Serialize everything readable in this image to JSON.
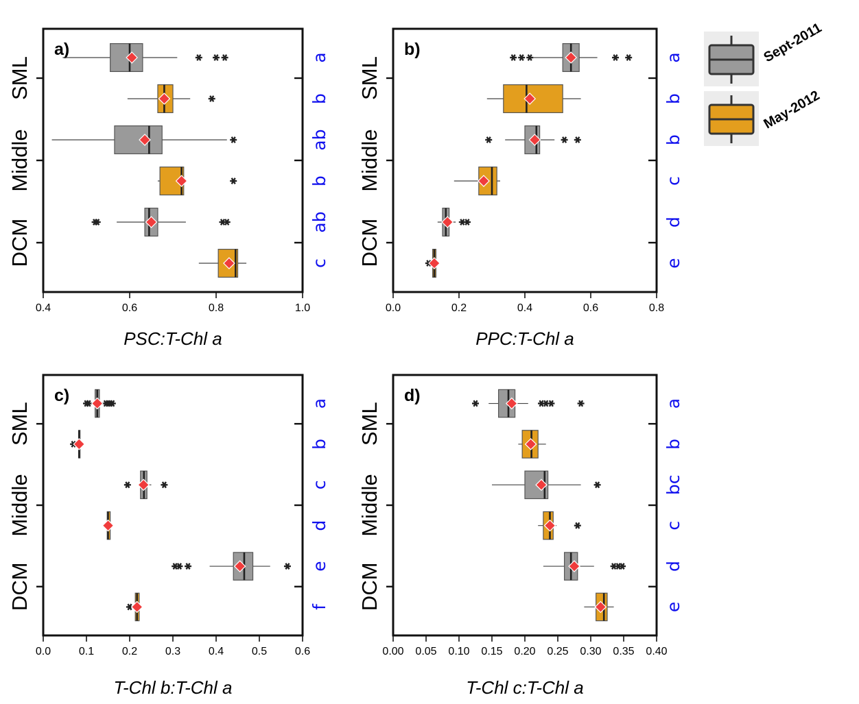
{
  "figure": {
    "colors": {
      "sept": "#9a9a9a",
      "may": "#e39e1e",
      "mean": "#f03c3c",
      "sig": "#1010ee",
      "box_edge": "#333333"
    },
    "legend": [
      {
        "label": "Sept-2011",
        "color": "#9a9a9a"
      },
      {
        "label": "May-2012",
        "color": "#e39e1e"
      }
    ],
    "y_group_labels": [
      "SML",
      "Middle",
      "DCM"
    ]
  },
  "chart_data": [
    {
      "type": "box",
      "panel_label": "a)",
      "xlabel": "PSC:T-Chl a",
      "xlim": [
        0.4,
        1.0
      ],
      "xticks": [
        "0.4",
        "0.6",
        "0.8",
        "1.0"
      ],
      "series": [
        {
          "group": "SML",
          "period": "Sept-2011",
          "whisker_low": 0.445,
          "q1": 0.555,
          "median": 0.6,
          "q3": 0.63,
          "whisker_high": 0.71,
          "mean": 0.605,
          "outliers": [
            0.76,
            0.8,
            0.82
          ],
          "letter": "a"
        },
        {
          "group": "SML",
          "period": "May-2012",
          "whisker_low": 0.595,
          "q1": 0.665,
          "median": 0.68,
          "q3": 0.7,
          "whisker_high": 0.74,
          "mean": 0.68,
          "outliers": [
            0.79
          ],
          "letter": "b"
        },
        {
          "group": "Middle",
          "period": "Sept-2011",
          "whisker_low": 0.42,
          "q1": 0.565,
          "median": 0.645,
          "q3": 0.675,
          "whisker_high": 0.825,
          "mean": 0.635,
          "outliers": [
            0.84
          ],
          "letter": "ab"
        },
        {
          "group": "Middle",
          "period": "May-2012",
          "whisker_low": 0.665,
          "q1": 0.67,
          "median": 0.72,
          "q3": 0.725,
          "whisker_high": 0.73,
          "mean": 0.72,
          "outliers": [
            0.84
          ],
          "letter": "b"
        },
        {
          "group": "DCM",
          "period": "Sept-2011",
          "whisker_low": 0.57,
          "q1": 0.635,
          "median": 0.645,
          "q3": 0.665,
          "whisker_high": 0.73,
          "mean": 0.65,
          "outliers": [
            0.52,
            0.525,
            0.815,
            0.825
          ],
          "letter": "ab"
        },
        {
          "group": "DCM",
          "period": "May-2012",
          "whisker_low": 0.76,
          "q1": 0.805,
          "median": 0.845,
          "q3": 0.85,
          "whisker_high": 0.87,
          "mean": 0.83,
          "outliers": [],
          "letter": "c"
        }
      ]
    },
    {
      "type": "box",
      "panel_label": "b)",
      "xlabel": "PPC:T-Chl a",
      "xlim": [
        0.0,
        0.8
      ],
      "xticks": [
        "0.0",
        "0.2",
        "0.4",
        "0.6",
        "0.8"
      ],
      "series": [
        {
          "group": "SML",
          "period": "Sept-2011",
          "whisker_low": 0.42,
          "q1": 0.515,
          "median": 0.54,
          "q3": 0.565,
          "whisker_high": 0.62,
          "mean": 0.54,
          "outliers": [
            0.365,
            0.39,
            0.415,
            0.675,
            0.715
          ],
          "letter": "a"
        },
        {
          "group": "SML",
          "period": "May-2012",
          "whisker_low": 0.285,
          "q1": 0.335,
          "median": 0.405,
          "q3": 0.515,
          "whisker_high": 0.57,
          "mean": 0.415,
          "outliers": [],
          "letter": "b"
        },
        {
          "group": "Middle",
          "period": "Sept-2011",
          "whisker_low": 0.34,
          "q1": 0.4,
          "median": 0.435,
          "q3": 0.445,
          "whisker_high": 0.49,
          "mean": 0.43,
          "outliers": [
            0.29,
            0.52,
            0.56
          ],
          "letter": "b"
        },
        {
          "group": "Middle",
          "period": "May-2012",
          "whisker_low": 0.185,
          "q1": 0.26,
          "median": 0.3,
          "q3": 0.315,
          "whisker_high": 0.325,
          "mean": 0.275,
          "outliers": [],
          "letter": "c"
        },
        {
          "group": "DCM",
          "period": "Sept-2011",
          "whisker_low": 0.135,
          "q1": 0.15,
          "median": 0.16,
          "q3": 0.17,
          "whisker_high": 0.19,
          "mean": 0.165,
          "outliers": [
            0.21,
            0.225
          ],
          "letter": "d"
        },
        {
          "group": "DCM",
          "period": "May-2012",
          "whisker_low": 0.115,
          "q1": 0.12,
          "median": 0.125,
          "q3": 0.13,
          "whisker_high": 0.132,
          "mean": 0.125,
          "outliers": [
            0.108
          ],
          "letter": "e"
        }
      ]
    },
    {
      "type": "box",
      "panel_label": "c)",
      "xlabel": "T-Chl b:T-Chl a",
      "xlim": [
        0.0,
        0.6
      ],
      "xticks": [
        "0.0",
        "0.1",
        "0.2",
        "0.3",
        "0.4",
        "0.5",
        "0.6"
      ],
      "series": [
        {
          "group": "SML",
          "period": "Sept-2011",
          "whisker_low": 0.115,
          "q1": 0.12,
          "median": 0.125,
          "q3": 0.13,
          "whisker_high": 0.14,
          "mean": 0.125,
          "outliers": [
            0.1,
            0.105,
            0.145,
            0.15,
            0.155,
            0.16
          ],
          "letter": "a"
        },
        {
          "group": "SML",
          "period": "May-2012",
          "whisker_low": 0.08,
          "q1": 0.082,
          "median": 0.083,
          "q3": 0.085,
          "whisker_high": 0.087,
          "mean": 0.083,
          "outliers": [
            0.07
          ],
          "letter": "b"
        },
        {
          "group": "Middle",
          "period": "Sept-2011",
          "whisker_low": 0.22,
          "q1": 0.225,
          "median": 0.233,
          "q3": 0.24,
          "whisker_high": 0.25,
          "mean": 0.232,
          "outliers": [
            0.195,
            0.28
          ],
          "letter": "c"
        },
        {
          "group": "Middle",
          "period": "May-2012",
          "whisker_low": 0.145,
          "q1": 0.148,
          "median": 0.15,
          "q3": 0.155,
          "whisker_high": 0.157,
          "mean": 0.15,
          "outliers": [],
          "letter": "d"
        },
        {
          "group": "DCM",
          "period": "Sept-2011",
          "whisker_low": 0.385,
          "q1": 0.44,
          "median": 0.465,
          "q3": 0.485,
          "whisker_high": 0.525,
          "mean": 0.455,
          "outliers": [
            0.305,
            0.315,
            0.335,
            0.565
          ],
          "letter": "e"
        },
        {
          "group": "DCM",
          "period": "May-2012",
          "whisker_low": 0.21,
          "q1": 0.213,
          "median": 0.217,
          "q3": 0.222,
          "whisker_high": 0.225,
          "mean": 0.217,
          "outliers": [
            0.2
          ],
          "letter": "f"
        }
      ]
    },
    {
      "type": "box",
      "panel_label": "d)",
      "xlabel": "T-Chl c:T-Chl a",
      "xlim": [
        0.0,
        0.4
      ],
      "xticks": [
        "0.00",
        "0.05",
        "0.10",
        "0.15",
        "0.20",
        "0.25",
        "0.30",
        "0.35",
        "0.40"
      ],
      "series": [
        {
          "group": "SML",
          "period": "Sept-2011",
          "whisker_low": 0.145,
          "q1": 0.16,
          "median": 0.175,
          "q3": 0.185,
          "whisker_high": 0.205,
          "mean": 0.18,
          "outliers": [
            0.125,
            0.225,
            0.232,
            0.24,
            0.285
          ],
          "letter": "a"
        },
        {
          "group": "SML",
          "period": "May-2012",
          "whisker_low": 0.19,
          "q1": 0.196,
          "median": 0.21,
          "q3": 0.22,
          "whisker_high": 0.232,
          "mean": 0.209,
          "outliers": [],
          "letter": "b"
        },
        {
          "group": "Middle",
          "period": "Sept-2011",
          "whisker_low": 0.15,
          "q1": 0.2,
          "median": 0.23,
          "q3": 0.235,
          "whisker_high": 0.285,
          "mean": 0.225,
          "outliers": [
            0.31
          ],
          "letter": "bc"
        },
        {
          "group": "Middle",
          "period": "May-2012",
          "whisker_low": 0.22,
          "q1": 0.228,
          "median": 0.238,
          "q3": 0.243,
          "whisker_high": 0.248,
          "mean": 0.238,
          "outliers": [
            0.28
          ],
          "letter": "c"
        },
        {
          "group": "DCM",
          "period": "Sept-2011",
          "whisker_low": 0.228,
          "q1": 0.26,
          "median": 0.27,
          "q3": 0.28,
          "whisker_high": 0.305,
          "mean": 0.275,
          "outliers": [
            0.335,
            0.342,
            0.348
          ],
          "letter": "d"
        },
        {
          "group": "DCM",
          "period": "May-2012",
          "whisker_low": 0.29,
          "q1": 0.308,
          "median": 0.32,
          "q3": 0.325,
          "whisker_high": 0.335,
          "mean": 0.315,
          "outliers": [],
          "letter": "e"
        }
      ]
    }
  ]
}
